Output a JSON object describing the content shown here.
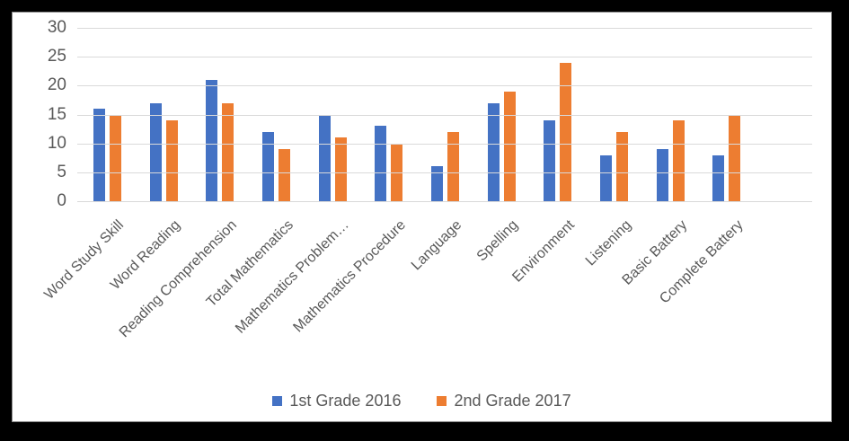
{
  "window": {
    "background_color": "#000000",
    "panel_background": "#ffffff",
    "panel_border_color": "#8c8c8c"
  },
  "chart_data": {
    "type": "bar",
    "title": "",
    "xlabel": "",
    "ylabel": "",
    "categories": [
      "Word Study Skill",
      "Word Reading",
      "Reading Comprehension",
      "Total Mathematics",
      "Mathematics Problem…",
      "Mathematics Procedure",
      "Language",
      "Spelling",
      "Environment",
      "Listening",
      "Basic Battery",
      "Complete Battery"
    ],
    "series": [
      {
        "name": "1st Grade 2016",
        "color": "#4472C4",
        "values": [
          16,
          17,
          21,
          12,
          15,
          13,
          6,
          17,
          14,
          8,
          9,
          8
        ]
      },
      {
        "name": "2nd Grade 2017",
        "color": "#ED7D31",
        "values": [
          15,
          14,
          17,
          9,
          11,
          10,
          12,
          19,
          24,
          12,
          14,
          15
        ]
      }
    ],
    "y_axis": {
      "min": 0,
      "max": 30,
      "step": 5,
      "ticks": [
        30,
        25,
        20,
        15,
        10,
        5,
        0
      ]
    },
    "grid": true,
    "gridline_color": "#D9D9D9",
    "axis_text_color": "#595959",
    "legend_position": "bottom"
  }
}
